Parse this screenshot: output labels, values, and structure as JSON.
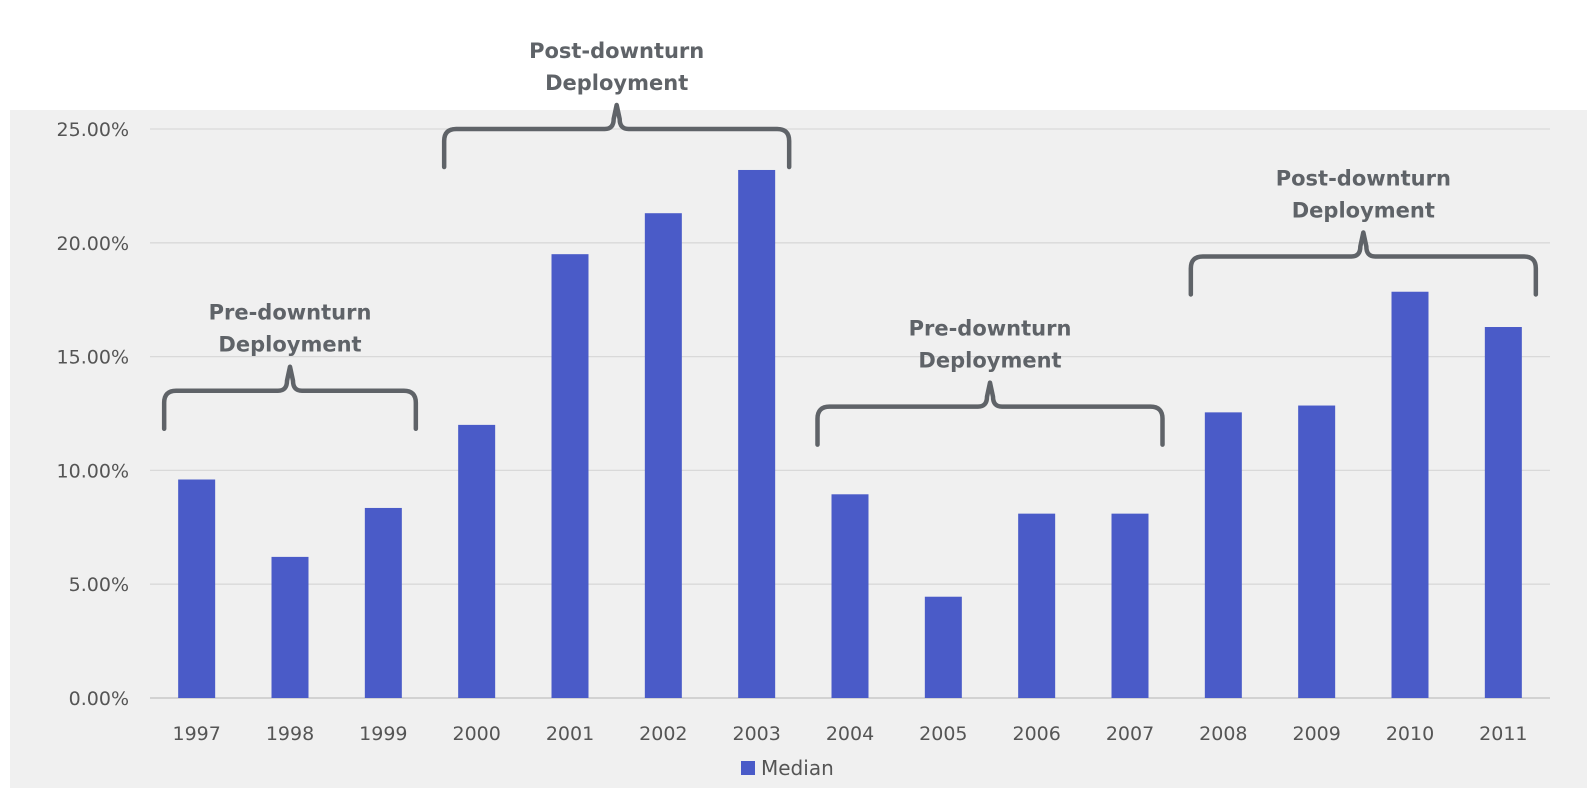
{
  "chart_data": {
    "type": "bar",
    "categories": [
      "1997",
      "1998",
      "1999",
      "2000",
      "2001",
      "2002",
      "2003",
      "2004",
      "2005",
      "2006",
      "2007",
      "2008",
      "2009",
      "2010",
      "2011"
    ],
    "series": [
      {
        "name": "Median",
        "values": [
          9.6,
          6.2,
          8.35,
          12.0,
          19.5,
          21.3,
          23.2,
          8.95,
          4.45,
          8.1,
          8.1,
          12.55,
          12.85,
          17.85,
          16.3
        ]
      }
    ],
    "ylim": [
      0,
      25
    ],
    "yticks": [
      "0.00%",
      "5.00%",
      "10.00%",
      "15.00%",
      "20.00%",
      "25.00%"
    ],
    "ytick_values": [
      0,
      5,
      10,
      15,
      20,
      25
    ],
    "grid": true,
    "legend_position": "bottom-center",
    "colors": {
      "bar": "#4a5bc8",
      "plot_background": "#f0f0f0",
      "grid": "#d9d9d9",
      "annotation": "#5f6368",
      "text": "#555555"
    },
    "annotations": [
      {
        "line1": "Pre-downturn",
        "line2": "Deployment",
        "from": "1997",
        "to": "1999",
        "level": 13.5
      },
      {
        "line1": "Post-downturn",
        "line2": "Deployment",
        "from": "2000",
        "to": "2003",
        "level": 25.0
      },
      {
        "line1": "Pre-downturn",
        "line2": "Deployment",
        "from": "2004",
        "to": "2007",
        "level": 12.8
      },
      {
        "line1": "Post-downturn",
        "line2": "Deployment",
        "from": "2008",
        "to": "2011",
        "level": 19.4
      }
    ]
  }
}
